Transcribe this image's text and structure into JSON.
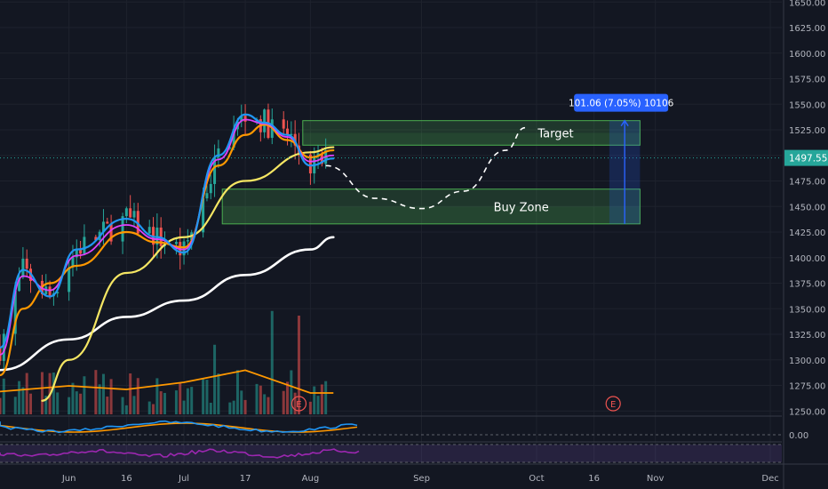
{
  "chart_data": {
    "type": "candlestick",
    "title": "",
    "price_axis": {
      "ticks": [
        "1650.00",
        "1625.00",
        "1600.00",
        "1575.00",
        "1550.00",
        "1525.00",
        "1500.00",
        "1475.00",
        "1450.00",
        "1425.00",
        "1400.00",
        "1375.00",
        "1350.00",
        "1325.00",
        "1300.00",
        "1275.00",
        "1250.00"
      ],
      "range": [
        1245,
        1652
      ],
      "last_price_label": "1497.55",
      "last_price": 1497.55
    },
    "time_axis": {
      "labels": [
        "Jun",
        "16",
        "Jul",
        "17",
        "Aug",
        "Sep",
        "Oct",
        "16",
        "Nov",
        "Dec"
      ],
      "label_dates": [
        "2020-06-01",
        "2020-06-16",
        "2020-07-01",
        "2020-07-17",
        "2020-08-03",
        "2020-09-01",
        "2020-10-01",
        "2020-10-16",
        "2020-11-01",
        "2020-12-01"
      ],
      "range": [
        "2020-05-14",
        "2020-12-04"
      ]
    },
    "annotations": {
      "target_label": "Target",
      "target_zone": [
        1510,
        1534
      ],
      "buy_zone_label": "Buy Zone",
      "buy_zone": [
        1433,
        1467
      ],
      "measure_label": "101.06 (7.05%) 10106",
      "earnings_marker": "E",
      "projection_path": [
        {
          "date": "2020-08-07",
          "price": 1490
        },
        {
          "date": "2020-08-20",
          "price": 1458
        },
        {
          "date": "2020-09-01",
          "price": 1448
        },
        {
          "date": "2020-09-12",
          "price": 1465
        },
        {
          "date": "2020-09-23",
          "price": 1505
        },
        {
          "date": "2020-09-28",
          "price": 1527
        }
      ]
    },
    "moving_averages": {
      "ma200": [
        [
          "2020-05-14",
          1290
        ],
        [
          "2020-06-01",
          1320
        ],
        [
          "2020-06-16",
          1342
        ],
        [
          "2020-07-01",
          1358
        ],
        [
          "2020-07-17",
          1383
        ],
        [
          "2020-08-03",
          1408
        ],
        [
          "2020-08-09",
          1420
        ]
      ],
      "ma50": [
        [
          "2020-05-25",
          1260
        ],
        [
          "2020-06-01",
          1300
        ],
        [
          "2020-06-16",
          1385
        ],
        [
          "2020-07-01",
          1420
        ],
        [
          "2020-07-17",
          1475
        ],
        [
          "2020-08-03",
          1503
        ],
        [
          "2020-08-09",
          1508
        ]
      ],
      "ema_orange": [
        [
          "2020-05-14",
          1285
        ],
        [
          "2020-05-20",
          1350
        ],
        [
          "2020-05-27",
          1375
        ],
        [
          "2020-06-03",
          1392
        ],
        [
          "2020-06-16",
          1425
        ],
        [
          "2020-06-24",
          1415
        ],
        [
          "2020-07-01",
          1410
        ],
        [
          "2020-07-10",
          1490
        ],
        [
          "2020-07-17",
          1520
        ],
        [
          "2020-07-22",
          1530
        ],
        [
          "2020-07-28",
          1515
        ],
        [
          "2020-08-03",
          1498
        ],
        [
          "2020-08-09",
          1505
        ]
      ],
      "ema_blue": [
        [
          "2020-05-14",
          1312
        ],
        [
          "2020-05-20",
          1388
        ],
        [
          "2020-05-27",
          1362
        ],
        [
          "2020-06-03",
          1408
        ],
        [
          "2020-06-16",
          1438
        ],
        [
          "2020-06-24",
          1420
        ],
        [
          "2020-07-01",
          1405
        ],
        [
          "2020-07-10",
          1500
        ],
        [
          "2020-07-17",
          1540
        ],
        [
          "2020-07-22",
          1532
        ],
        [
          "2020-07-28",
          1520
        ],
        [
          "2020-08-03",
          1490
        ],
        [
          "2020-08-09",
          1497
        ]
      ],
      "ema_pink": [
        [
          "2020-05-14",
          1305
        ],
        [
          "2020-05-20",
          1382
        ],
        [
          "2020-05-27",
          1368
        ],
        [
          "2020-06-03",
          1402
        ],
        [
          "2020-06-16",
          1432
        ],
        [
          "2020-06-24",
          1418
        ],
        [
          "2020-07-01",
          1408
        ],
        [
          "2020-07-10",
          1496
        ],
        [
          "2020-07-17",
          1535
        ],
        [
          "2020-07-22",
          1531
        ],
        [
          "2020-07-28",
          1518
        ],
        [
          "2020-08-03",
          1494
        ],
        [
          "2020-08-09",
          1500
        ]
      ]
    },
    "volume_average": [
      [
        "2020-05-14",
        0.32
      ],
      [
        "2020-06-01",
        0.4
      ],
      [
        "2020-06-16",
        0.35
      ],
      [
        "2020-07-01",
        0.45
      ],
      [
        "2020-07-17",
        0.62
      ],
      [
        "2020-08-03",
        0.3
      ],
      [
        "2020-08-09",
        0.3
      ]
    ],
    "indicator_axis": {
      "label": "0.00"
    },
    "colors": {
      "bg": "#131722",
      "grid": "#1e222d",
      "up": "#26a69a",
      "down": "#ef5350",
      "target_fill": "rgba(76,175,80,0.25)",
      "zone_border": "#4caf50",
      "ma200": "#ffffff",
      "ma50": "#f5e663",
      "ema_orange": "#ff9800",
      "ema_blue": "#2196f3",
      "ema_pink": "#e040fb",
      "rsi": "#9c27b0",
      "axis_text": "#b2b5be",
      "price_tag": "#26a69a",
      "measure_bg": "#2962ff"
    }
  }
}
